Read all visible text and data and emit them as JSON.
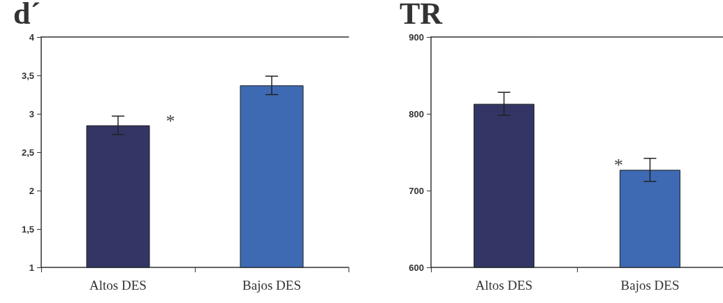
{
  "chart_data": [
    {
      "type": "bar",
      "title": "d´",
      "categories": [
        "Altos DES",
        "Bajos DES"
      ],
      "colors": [
        "#333564",
        "#3e6ab3"
      ],
      "values": [
        2.85,
        3.37
      ],
      "errors": [
        0.12,
        0.12
      ],
      "ylim": [
        1,
        4
      ],
      "yticks": [
        1,
        {
          "value": 1.5,
          "label": "1,5"
        },
        2,
        {
          "value": 2.5,
          "label": "2,5"
        },
        3,
        {
          "value": 3.5,
          "label": "3,5"
        },
        4
      ],
      "grid": false,
      "annotations": [
        {
          "text": "*",
          "x": "Altos DES",
          "y": 3.0
        }
      ]
    },
    {
      "type": "bar",
      "title": "TR",
      "categories": [
        "Altos DES",
        "Bajos DES"
      ],
      "colors": [
        "#333564",
        "#3e6ab3"
      ],
      "values": [
        813,
        727
      ],
      "errors": [
        15,
        15
      ],
      "ylim": [
        600,
        900
      ],
      "yticks": [
        600,
        700,
        800,
        900
      ],
      "grid": false,
      "annotations": [
        {
          "text": "*",
          "x": "Bajos DES",
          "y": 742
        }
      ]
    }
  ]
}
